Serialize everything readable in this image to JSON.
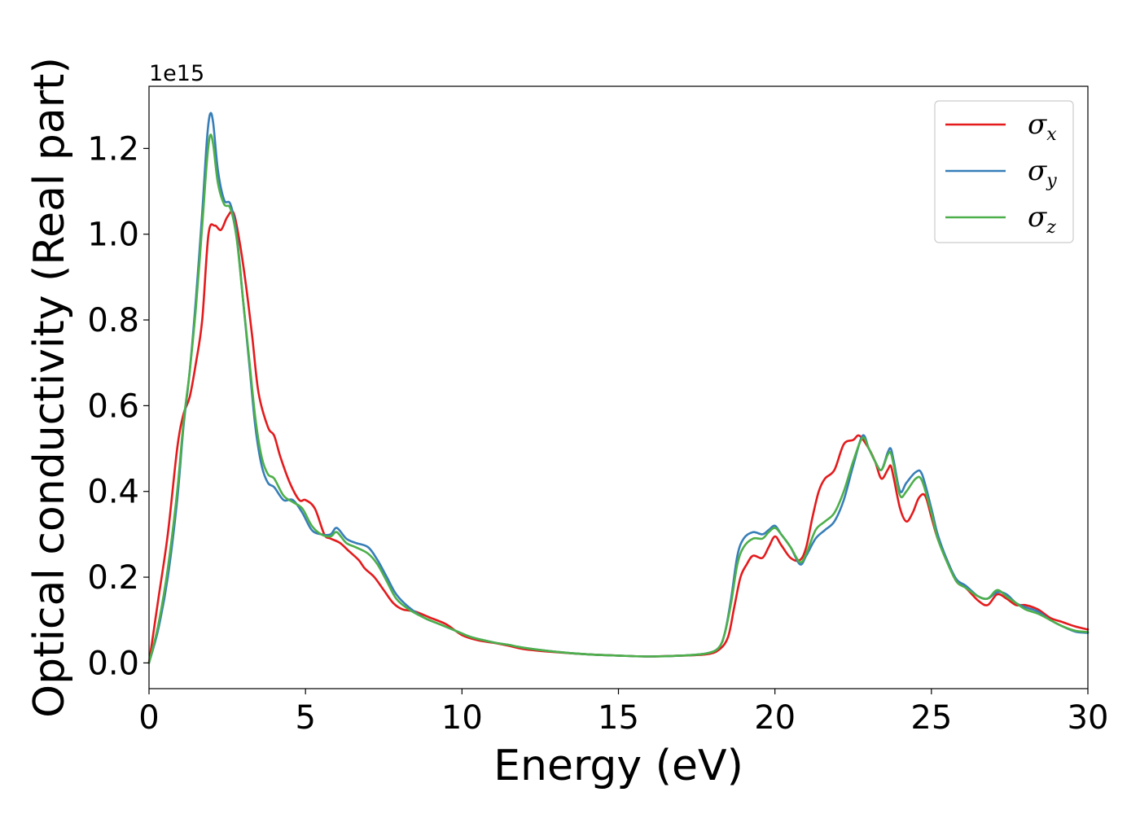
{
  "chart_data": {
    "type": "line",
    "title": "",
    "xlabel": "Energy (eV)",
    "ylabel": "Optical conductivity (Real part)",
    "y_offset_label": "1e15",
    "xlim": [
      0,
      30
    ],
    "ylim": [
      -0.06,
      1.345
    ],
    "x_ticks": [
      0,
      5,
      10,
      15,
      20,
      25,
      30
    ],
    "y_ticks": [
      0.0,
      0.2,
      0.4,
      0.6,
      0.8,
      1.0,
      1.2
    ],
    "x_tick_labels": [
      "0",
      "5",
      "10",
      "15",
      "20",
      "25",
      "30"
    ],
    "y_tick_labels": [
      "0.0",
      "0.2",
      "0.4",
      "0.6",
      "0.8",
      "1.0",
      "1.2"
    ],
    "grid": false,
    "legend_position": "top-right",
    "series": [
      {
        "name": "σ",
        "subscript": "x",
        "color": "#e41a1c",
        "points": [
          [
            0,
            0
          ],
          [
            0.3,
            0.15
          ],
          [
            0.6,
            0.3
          ],
          [
            0.9,
            0.5
          ],
          [
            1.1,
            0.58
          ],
          [
            1.3,
            0.62
          ],
          [
            1.5,
            0.7
          ],
          [
            1.7,
            0.8
          ],
          [
            1.9,
            1.0
          ],
          [
            2.1,
            1.02
          ],
          [
            2.3,
            1.01
          ],
          [
            2.5,
            1.04
          ],
          [
            2.7,
            1.05
          ],
          [
            2.9,
            0.98
          ],
          [
            3.1,
            0.88
          ],
          [
            3.3,
            0.76
          ],
          [
            3.5,
            0.63
          ],
          [
            3.8,
            0.55
          ],
          [
            4.0,
            0.53
          ],
          [
            4.2,
            0.48
          ],
          [
            4.5,
            0.42
          ],
          [
            4.8,
            0.38
          ],
          [
            5.0,
            0.38
          ],
          [
            5.3,
            0.36
          ],
          [
            5.6,
            0.3
          ],
          [
            5.8,
            0.29
          ],
          [
            6.1,
            0.28
          ],
          [
            6.4,
            0.26
          ],
          [
            6.7,
            0.24
          ],
          [
            6.9,
            0.22
          ],
          [
            7.2,
            0.2
          ],
          [
            7.5,
            0.17
          ],
          [
            7.8,
            0.14
          ],
          [
            8.1,
            0.125
          ],
          [
            8.5,
            0.12
          ],
          [
            9.0,
            0.105
          ],
          [
            9.5,
            0.09
          ],
          [
            10,
            0.065
          ],
          [
            10.5,
            0.053
          ],
          [
            11,
            0.047
          ],
          [
            11.5,
            0.04
          ],
          [
            12,
            0.032
          ],
          [
            13,
            0.025
          ],
          [
            14,
            0.02
          ],
          [
            15,
            0.017
          ],
          [
            16,
            0.015
          ],
          [
            17,
            0.017
          ],
          [
            17.8,
            0.02
          ],
          [
            18.2,
            0.03
          ],
          [
            18.5,
            0.06
          ],
          [
            18.7,
            0.13
          ],
          [
            18.9,
            0.2
          ],
          [
            19.1,
            0.23
          ],
          [
            19.3,
            0.25
          ],
          [
            19.6,
            0.245
          ],
          [
            19.8,
            0.27
          ],
          [
            20.0,
            0.295
          ],
          [
            20.2,
            0.275
          ],
          [
            20.5,
            0.245
          ],
          [
            20.8,
            0.24
          ],
          [
            21.0,
            0.27
          ],
          [
            21.2,
            0.34
          ],
          [
            21.4,
            0.4
          ],
          [
            21.6,
            0.43
          ],
          [
            21.9,
            0.45
          ],
          [
            22.2,
            0.51
          ],
          [
            22.5,
            0.52
          ],
          [
            22.7,
            0.53
          ],
          [
            23.0,
            0.5
          ],
          [
            23.2,
            0.47
          ],
          [
            23.4,
            0.43
          ],
          [
            23.6,
            0.45
          ],
          [
            23.7,
            0.46
          ],
          [
            23.8,
            0.43
          ],
          [
            24.0,
            0.36
          ],
          [
            24.2,
            0.33
          ],
          [
            24.4,
            0.35
          ],
          [
            24.6,
            0.385
          ],
          [
            24.8,
            0.39
          ],
          [
            25.0,
            0.34
          ],
          [
            25.2,
            0.29
          ],
          [
            25.5,
            0.24
          ],
          [
            25.8,
            0.19
          ],
          [
            26.1,
            0.175
          ],
          [
            26.5,
            0.145
          ],
          [
            26.8,
            0.135
          ],
          [
            27.1,
            0.16
          ],
          [
            27.4,
            0.15
          ],
          [
            27.7,
            0.135
          ],
          [
            28.0,
            0.135
          ],
          [
            28.4,
            0.125
          ],
          [
            28.8,
            0.105
          ],
          [
            29.2,
            0.095
          ],
          [
            29.6,
            0.085
          ],
          [
            30,
            0.078
          ]
        ]
      },
      {
        "name": "σ",
        "subscript": "y",
        "color": "#377eb8",
        "points": [
          [
            0,
            0
          ],
          [
            0.3,
            0.08
          ],
          [
            0.6,
            0.2
          ],
          [
            0.9,
            0.38
          ],
          [
            1.1,
            0.55
          ],
          [
            1.3,
            0.68
          ],
          [
            1.5,
            0.85
          ],
          [
            1.7,
            1.05
          ],
          [
            1.85,
            1.22
          ],
          [
            1.95,
            1.28
          ],
          [
            2.05,
            1.26
          ],
          [
            2.2,
            1.15
          ],
          [
            2.4,
            1.08
          ],
          [
            2.6,
            1.07
          ],
          [
            2.8,
            1.0
          ],
          [
            3.0,
            0.85
          ],
          [
            3.2,
            0.7
          ],
          [
            3.4,
            0.55
          ],
          [
            3.6,
            0.46
          ],
          [
            3.8,
            0.42
          ],
          [
            4.0,
            0.41
          ],
          [
            4.3,
            0.38
          ],
          [
            4.6,
            0.38
          ],
          [
            4.9,
            0.35
          ],
          [
            5.2,
            0.31
          ],
          [
            5.5,
            0.3
          ],
          [
            5.8,
            0.3
          ],
          [
            6.0,
            0.315
          ],
          [
            6.3,
            0.29
          ],
          [
            6.6,
            0.28
          ],
          [
            7.0,
            0.27
          ],
          [
            7.3,
            0.24
          ],
          [
            7.6,
            0.2
          ],
          [
            7.9,
            0.16
          ],
          [
            8.3,
            0.13
          ],
          [
            8.8,
            0.105
          ],
          [
            9.3,
            0.09
          ],
          [
            9.8,
            0.075
          ],
          [
            10.3,
            0.06
          ],
          [
            11,
            0.048
          ],
          [
            11.5,
            0.042
          ],
          [
            12,
            0.035
          ],
          [
            13,
            0.026
          ],
          [
            14,
            0.02
          ],
          [
            15,
            0.017
          ],
          [
            16,
            0.015
          ],
          [
            17,
            0.017
          ],
          [
            17.8,
            0.022
          ],
          [
            18.2,
            0.035
          ],
          [
            18.4,
            0.07
          ],
          [
            18.6,
            0.15
          ],
          [
            18.8,
            0.25
          ],
          [
            19.0,
            0.29
          ],
          [
            19.3,
            0.305
          ],
          [
            19.6,
            0.3
          ],
          [
            19.8,
            0.31
          ],
          [
            20.0,
            0.32
          ],
          [
            20.2,
            0.3
          ],
          [
            20.5,
            0.27
          ],
          [
            20.8,
            0.23
          ],
          [
            21.0,
            0.25
          ],
          [
            21.3,
            0.29
          ],
          [
            21.6,
            0.31
          ],
          [
            21.9,
            0.33
          ],
          [
            22.2,
            0.38
          ],
          [
            22.5,
            0.46
          ],
          [
            22.8,
            0.53
          ],
          [
            23.0,
            0.5
          ],
          [
            23.2,
            0.47
          ],
          [
            23.4,
            0.45
          ],
          [
            23.6,
            0.49
          ],
          [
            23.7,
            0.5
          ],
          [
            23.8,
            0.47
          ],
          [
            24.0,
            0.4
          ],
          [
            24.2,
            0.42
          ],
          [
            24.5,
            0.445
          ],
          [
            24.7,
            0.44
          ],
          [
            25.0,
            0.36
          ],
          [
            25.2,
            0.3
          ],
          [
            25.5,
            0.24
          ],
          [
            25.8,
            0.195
          ],
          [
            26.1,
            0.18
          ],
          [
            26.5,
            0.155
          ],
          [
            26.8,
            0.15
          ],
          [
            27.1,
            0.165
          ],
          [
            27.4,
            0.16
          ],
          [
            27.7,
            0.14
          ],
          [
            28.0,
            0.13
          ],
          [
            28.4,
            0.12
          ],
          [
            28.8,
            0.1
          ],
          [
            29.2,
            0.085
          ],
          [
            29.6,
            0.073
          ],
          [
            30,
            0.07
          ]
        ]
      },
      {
        "name": "σ",
        "subscript": "z",
        "color": "#4daf4a",
        "points": [
          [
            0,
            0
          ],
          [
            0.3,
            0.09
          ],
          [
            0.6,
            0.22
          ],
          [
            0.9,
            0.4
          ],
          [
            1.1,
            0.56
          ],
          [
            1.3,
            0.68
          ],
          [
            1.5,
            0.83
          ],
          [
            1.7,
            1.02
          ],
          [
            1.85,
            1.17
          ],
          [
            1.95,
            1.23
          ],
          [
            2.05,
            1.21
          ],
          [
            2.2,
            1.12
          ],
          [
            2.4,
            1.07
          ],
          [
            2.6,
            1.06
          ],
          [
            2.8,
            0.99
          ],
          [
            3.0,
            0.85
          ],
          [
            3.2,
            0.71
          ],
          [
            3.4,
            0.57
          ],
          [
            3.6,
            0.48
          ],
          [
            3.8,
            0.44
          ],
          [
            4.0,
            0.43
          ],
          [
            4.3,
            0.39
          ],
          [
            4.6,
            0.375
          ],
          [
            4.9,
            0.36
          ],
          [
            5.2,
            0.32
          ],
          [
            5.5,
            0.3
          ],
          [
            5.8,
            0.295
          ],
          [
            6.0,
            0.305
          ],
          [
            6.3,
            0.28
          ],
          [
            6.6,
            0.27
          ],
          [
            7.0,
            0.255
          ],
          [
            7.3,
            0.23
          ],
          [
            7.6,
            0.19
          ],
          [
            7.9,
            0.15
          ],
          [
            8.3,
            0.125
          ],
          [
            8.8,
            0.105
          ],
          [
            9.3,
            0.09
          ],
          [
            9.8,
            0.075
          ],
          [
            10.3,
            0.06
          ],
          [
            11,
            0.048
          ],
          [
            11.5,
            0.042
          ],
          [
            12,
            0.035
          ],
          [
            13,
            0.026
          ],
          [
            14,
            0.02
          ],
          [
            15,
            0.017
          ],
          [
            16,
            0.015
          ],
          [
            17,
            0.017
          ],
          [
            17.8,
            0.022
          ],
          [
            18.2,
            0.035
          ],
          [
            18.4,
            0.07
          ],
          [
            18.6,
            0.14
          ],
          [
            18.8,
            0.23
          ],
          [
            19.0,
            0.27
          ],
          [
            19.3,
            0.29
          ],
          [
            19.6,
            0.29
          ],
          [
            19.8,
            0.305
          ],
          [
            20.0,
            0.315
          ],
          [
            20.2,
            0.3
          ],
          [
            20.5,
            0.27
          ],
          [
            20.8,
            0.235
          ],
          [
            21.0,
            0.255
          ],
          [
            21.3,
            0.31
          ],
          [
            21.6,
            0.33
          ],
          [
            21.9,
            0.35
          ],
          [
            22.2,
            0.4
          ],
          [
            22.5,
            0.47
          ],
          [
            22.8,
            0.525
          ],
          [
            23.0,
            0.5
          ],
          [
            23.2,
            0.47
          ],
          [
            23.4,
            0.45
          ],
          [
            23.6,
            0.485
          ],
          [
            23.7,
            0.49
          ],
          [
            23.8,
            0.46
          ],
          [
            24.0,
            0.39
          ],
          [
            24.2,
            0.4
          ],
          [
            24.5,
            0.43
          ],
          [
            24.7,
            0.425
          ],
          [
            25.0,
            0.35
          ],
          [
            25.2,
            0.29
          ],
          [
            25.5,
            0.235
          ],
          [
            25.8,
            0.19
          ],
          [
            26.1,
            0.175
          ],
          [
            26.5,
            0.155
          ],
          [
            26.8,
            0.15
          ],
          [
            27.1,
            0.17
          ],
          [
            27.4,
            0.155
          ],
          [
            27.7,
            0.14
          ],
          [
            28.0,
            0.125
          ],
          [
            28.4,
            0.115
          ],
          [
            28.8,
            0.1
          ],
          [
            29.2,
            0.085
          ],
          [
            29.6,
            0.075
          ],
          [
            30,
            0.072
          ]
        ]
      }
    ]
  }
}
